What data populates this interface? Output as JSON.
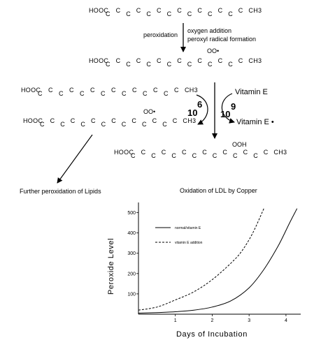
{
  "scheme": {
    "chains": [
      [
        "HOOC",
        "C",
        "C",
        "C",
        "C",
        "C",
        "C",
        "C",
        "C",
        "C",
        "C",
        "C",
        "C",
        "C",
        "C",
        "CH3"
      ],
      [
        "HOOC",
        "C",
        "C",
        "C",
        "C",
        "C",
        "C",
        "C",
        "C",
        "C",
        "C",
        "C",
        "C",
        "C",
        "C",
        "CH3"
      ],
      [
        "HOOC",
        "C",
        "C",
        "C",
        "C",
        "C",
        "C",
        "C",
        "C",
        "C",
        "C",
        "C",
        "C",
        "C",
        "C",
        "CH3"
      ],
      [
        "HOOC",
        "C",
        "C",
        "C",
        "C",
        "C",
        "C",
        "C",
        "C",
        "C",
        "C",
        "C",
        "C",
        "C",
        "C",
        "CH3"
      ],
      [
        "HOOC",
        "C",
        "C",
        "C",
        "C",
        "C",
        "C",
        "C",
        "C",
        "C",
        "C",
        "C",
        "C",
        "C",
        "C",
        "CH3"
      ]
    ],
    "step1_left": "peroxidation",
    "step1_right_1": "oxygen addition",
    "step1_right_2": "peroxyl radical formation",
    "radical_mark": "OO•",
    "hydroperoxide": "OOH",
    "vitamin_e": "Vitamin E",
    "vitamin_e_radical": "Vitamin E •",
    "rate_a_num": "6",
    "rate_a_exp": "10",
    "rate_b_num": "9",
    "rate_b_exp": "10",
    "further": "Further peroxidation of Lipids"
  },
  "chart_data": {
    "type": "line",
    "title": "Oxidation of LDL by Copper",
    "xlabel": "Days of Incubation",
    "ylabel": "Peroxide Level",
    "xlim": [
      0,
      4.4
    ],
    "ylim": [
      0,
      550
    ],
    "xticks": [
      1,
      2,
      3,
      4
    ],
    "yticks": [
      100,
      200,
      300,
      400,
      500
    ],
    "grid": false,
    "legend": "top-left",
    "series": [
      {
        "name": "normal/vitamin E",
        "style": "solid",
        "x": [
          0,
          0.5,
          1.0,
          1.5,
          2.0,
          2.5,
          3.0,
          3.4,
          3.8,
          4.1,
          4.3
        ],
        "y": [
          5,
          8,
          12,
          20,
          35,
          65,
          130,
          220,
          340,
          450,
          520
        ]
      },
      {
        "name": "vitamin E addition",
        "style": "dashed",
        "x": [
          0,
          0.5,
          1.0,
          1.5,
          2.0,
          2.5,
          2.8,
          3.1,
          3.4
        ],
        "y": [
          20,
          35,
          70,
          110,
          170,
          250,
          310,
          400,
          520
        ]
      }
    ]
  }
}
